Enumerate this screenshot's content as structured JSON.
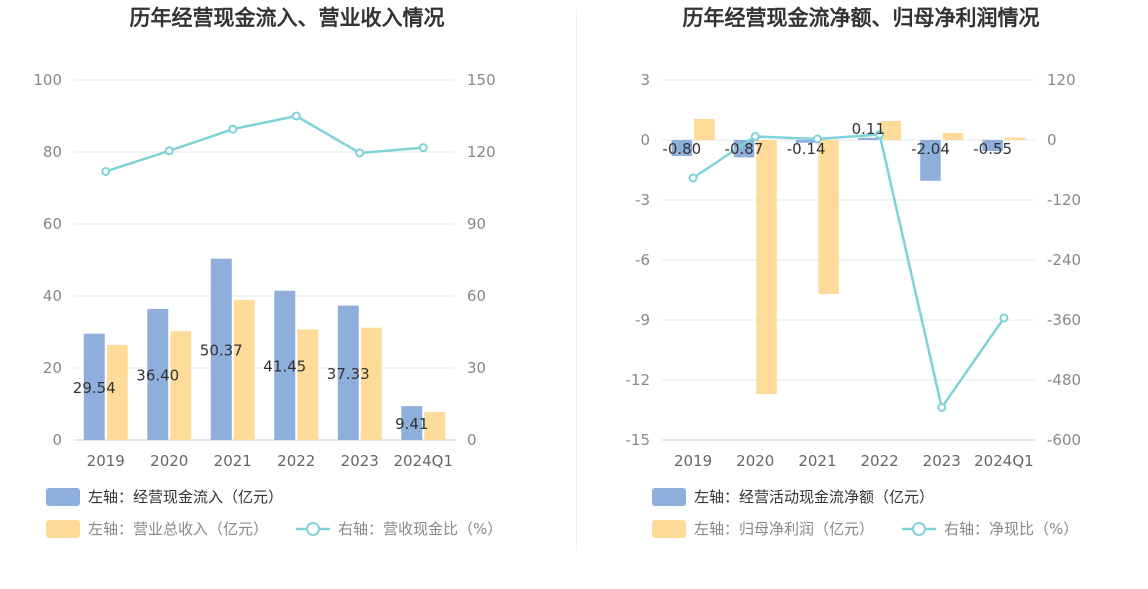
{
  "colors": {
    "bar_blue": "#8eaedc",
    "bar_orange": "#ffdb9a",
    "line_teal": "#7fd3d8",
    "grid": "#e6e9f0"
  },
  "chart_data": [
    {
      "type": "bar",
      "title": "历年经营现金流入、营业收入情况",
      "categories": [
        "2019",
        "2020",
        "2021",
        "2022",
        "2023",
        "2024Q1"
      ],
      "left_axis": {
        "ylim": [
          0,
          100
        ],
        "ticks": [
          "100",
          "80",
          "60",
          "40",
          "20",
          "0"
        ]
      },
      "right_axis": {
        "ylim": [
          0,
          150
        ],
        "ticks": [
          "150",
          "120",
          "90",
          "60",
          "30",
          "0"
        ]
      },
      "grid": true,
      "series": [
        {
          "name": "左轴：经营现金流入（亿元）",
          "kind": "bar",
          "axis": "left",
          "color": "#8eaedc",
          "values": [
            29.54,
            36.4,
            50.37,
            41.45,
            37.33,
            9.41
          ],
          "labels": [
            "29.54",
            "36.40",
            "50.37",
            "41.45",
            "37.33",
            "9.41"
          ]
        },
        {
          "name": "左轴：营业总收入（亿元）",
          "kind": "bar",
          "axis": "left",
          "color": "#ffdb9a",
          "values": [
            26.4,
            30.2,
            38.9,
            30.7,
            31.2,
            7.8
          ]
        },
        {
          "name": "右轴：营收现金比（%）",
          "kind": "line",
          "axis": "right",
          "color": "#7fd3d8",
          "values": [
            111.9,
            120.5,
            129.5,
            135.0,
            119.6,
            121.8
          ]
        }
      ],
      "legend": [
        {
          "label": "左轴：经营现金流入（亿元）",
          "type": "box",
          "color": "#8eaedc"
        },
        {
          "label": "左轴：营业总收入（亿元）",
          "type": "box",
          "color": "#ffdb9a"
        },
        {
          "label": "右轴：营收现金比（%）",
          "type": "line",
          "color": "#7fd3d8"
        }
      ]
    },
    {
      "type": "bar",
      "title": "历年经营现金流净额、归母净利润情况",
      "categories": [
        "2019",
        "2020",
        "2021",
        "2022",
        "2023",
        "2024Q1"
      ],
      "left_axis": {
        "ylim": [
          -15,
          3
        ],
        "ticks": [
          "3",
          "0",
          "-3",
          "-6",
          "-9",
          "-12",
          "-15"
        ]
      },
      "right_axis": {
        "ylim": [
          -600,
          120
        ],
        "ticks": [
          "120",
          "0",
          "-120",
          "-240",
          "-360",
          "-480",
          "-600"
        ]
      },
      "grid": true,
      "series": [
        {
          "name": "左轴：经营活动现金流净额（亿元）",
          "kind": "bar",
          "axis": "left",
          "color": "#8eaedc",
          "values": [
            -0.8,
            -0.87,
            -0.14,
            0.11,
            -2.04,
            -0.55
          ],
          "labels": [
            "-0.80",
            "-0.87",
            "-0.14",
            "0.11",
            "-2.04",
            "-0.55"
          ]
        },
        {
          "name": "左轴：归母净利润（亿元）",
          "kind": "bar",
          "axis": "left",
          "color": "#ffdb9a",
          "values": [
            1.05,
            -12.7,
            -7.7,
            0.95,
            0.35,
            0.12
          ]
        },
        {
          "name": "右轴：净现比（%）",
          "kind": "line",
          "axis": "right",
          "color": "#7fd3d8",
          "values": [
            -76,
            7,
            2,
            11,
            -535,
            -356
          ]
        }
      ],
      "legend": [
        {
          "label": "左轴：经营活动现金流净额（亿元）",
          "type": "box",
          "color": "#8eaedc"
        },
        {
          "label": "左轴：归母净利润（亿元）",
          "type": "box",
          "color": "#ffdb9a"
        },
        {
          "label": "右轴：净现比（%）",
          "type": "line",
          "color": "#7fd3d8"
        }
      ]
    }
  ]
}
